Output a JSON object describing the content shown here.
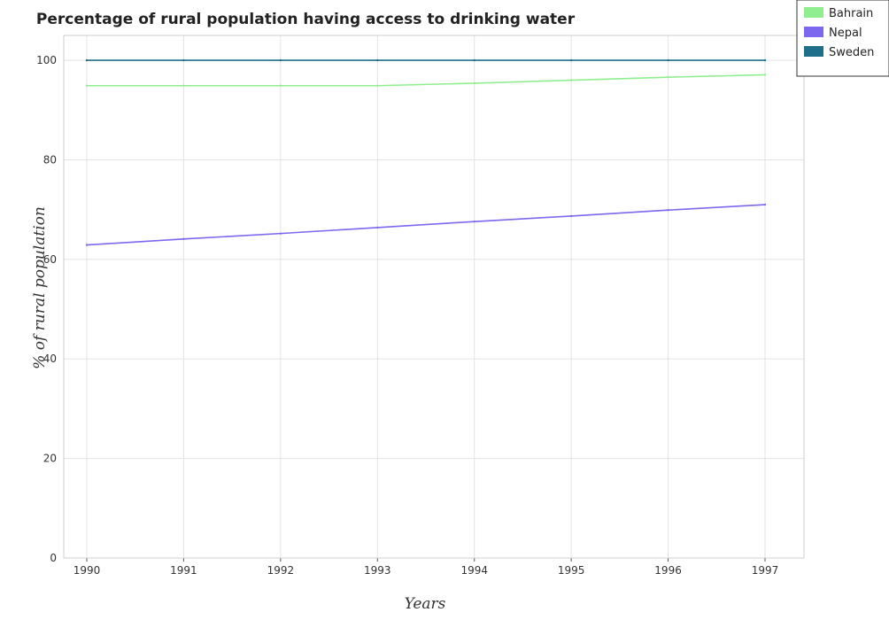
{
  "chart_data": {
    "type": "line",
    "title": "Percentage of rural population having access to drinking water",
    "xlabel": "Years",
    "ylabel": "% of rural population",
    "categories": [
      "1990",
      "1991",
      "1992",
      "1993",
      "1994",
      "1995",
      "1996",
      "1997"
    ],
    "ylim": [
      0,
      105
    ],
    "yticks": [
      0,
      20,
      40,
      60,
      80,
      100
    ],
    "grid": true,
    "legend_position": "top-right",
    "series": [
      {
        "name": "Bahrain",
        "color": "#90ee90",
        "values": [
          94.9,
          94.9,
          94.9,
          94.9,
          95.4,
          96.0,
          96.6,
          97.1
        ]
      },
      {
        "name": "Nepal",
        "color": "#7b68ee",
        "values": [
          62.9,
          64.1,
          65.2,
          66.4,
          67.6,
          68.7,
          69.9,
          71.0
        ]
      },
      {
        "name": "Sweden",
        "color": "#1f6f8b",
        "values": [
          100,
          100,
          100,
          100,
          100,
          100,
          100,
          100
        ]
      }
    ]
  }
}
